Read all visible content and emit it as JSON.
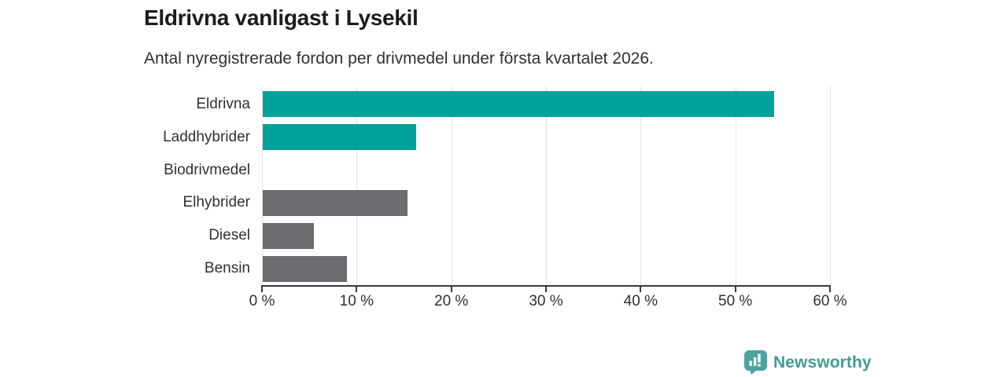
{
  "header": {
    "title": "Eldrivna vanligast i Lysekil",
    "subtitle": "Antal nyregistrerade fordon per drivmedel under första kvartalet 2026."
  },
  "chart_data": {
    "type": "bar",
    "orientation": "horizontal",
    "title": "Eldrivna vanligast i Lysekil",
    "subtitle": "Antal nyregistrerade fordon per drivmedel under första kvartalet 2026.",
    "categories": [
      "Eldrivna",
      "Laddhybrider",
      "Biodrivmedel",
      "Elhybrider",
      "Diesel",
      "Bensin"
    ],
    "values": [
      54,
      16.2,
      0,
      15.3,
      5.4,
      8.9
    ],
    "unit": "%",
    "bar_colors": [
      "#00a19a",
      "#00a19a",
      "#6b6b70",
      "#6b6b70",
      "#6b6b70",
      "#6b6b70"
    ],
    "xlabel": "",
    "ylabel": "",
    "xlim": [
      0,
      60
    ],
    "xticks": [
      0,
      10,
      20,
      30,
      40,
      50,
      60
    ],
    "xtick_labels": [
      "0 %",
      "10 %",
      "20 %",
      "30 %",
      "40 %",
      "50 %",
      "60 %"
    ],
    "grid": true,
    "legend": false
  },
  "footer": {
    "brand": "Newsworthy",
    "brand_color": "#3f9b95",
    "logo_color": "#4ba39d"
  },
  "colors": {
    "electric_teal": "#00a19a",
    "neutral_gray": "#6b6b70",
    "gridline": "#e2e2e2",
    "axis": "#393a40",
    "text": "#303030"
  }
}
